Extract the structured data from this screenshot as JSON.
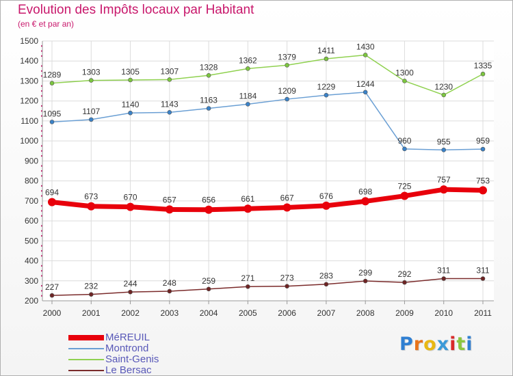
{
  "header": {
    "title": "Evolution des Impôts locaux par Habitant",
    "subtitle": "(en € et par an)"
  },
  "logo": {
    "letters": [
      "P",
      "r",
      "o",
      "x",
      "i",
      "t",
      "i"
    ],
    "colors": [
      "#2f7fd2",
      "#e8731a",
      "#e8b814",
      "#3a9ad8",
      "#d92a2a",
      "#8bc63f",
      "#2f7fd2"
    ]
  },
  "colors": {
    "title": "#c8176b",
    "legend_text": "#5858b8",
    "grid": "#dcdcdc",
    "axis": "#999999"
  },
  "chart_data": {
    "type": "line",
    "title": "Evolution des Impôts locaux par Habitant",
    "subtitle": "(en € et par an)",
    "xlabel": "",
    "ylabel": "",
    "ylim": [
      200,
      1500
    ],
    "yticks": [
      200,
      300,
      400,
      500,
      600,
      700,
      800,
      900,
      1000,
      1100,
      1200,
      1300,
      1400,
      1500
    ],
    "grid": true,
    "legend_position": "bottom-left",
    "x": [
      "2000",
      "2001",
      "2002",
      "2003",
      "2004",
      "2005",
      "2006",
      "2007",
      "2008",
      "2009",
      "2010",
      "2011"
    ],
    "series": [
      {
        "name": "Saint-Genis",
        "color": "#8fd14f",
        "marker": "#7cc63f",
        "width": 1.5,
        "values": [
          1289,
          1303,
          1305,
          1307,
          1328,
          1362,
          1379,
          1411,
          1430,
          1300,
          1230,
          1335
        ]
      },
      {
        "name": "Montrond",
        "color": "#6a9fd4",
        "marker": "#3a82c8",
        "width": 1.5,
        "values": [
          1095,
          1107,
          1140,
          1143,
          1163,
          1184,
          1209,
          1229,
          1244,
          960,
          955,
          959
        ]
      },
      {
        "name": "Le Bersac",
        "color": "#7a2a2a",
        "marker": "#6e2424",
        "width": 1.5,
        "values": [
          227,
          232,
          244,
          248,
          259,
          271,
          273,
          283,
          299,
          292,
          311,
          311
        ]
      },
      {
        "name": "MéREUIL",
        "color": "#e8000b",
        "marker": "#e8000b",
        "width": 7,
        "values": [
          694,
          673,
          670,
          657,
          656,
          661,
          667,
          676,
          698,
          725,
          757,
          753
        ]
      }
    ],
    "legend": [
      "MéREUIL",
      "Montrond",
      "Saint-Genis",
      "Le Bersac"
    ]
  }
}
